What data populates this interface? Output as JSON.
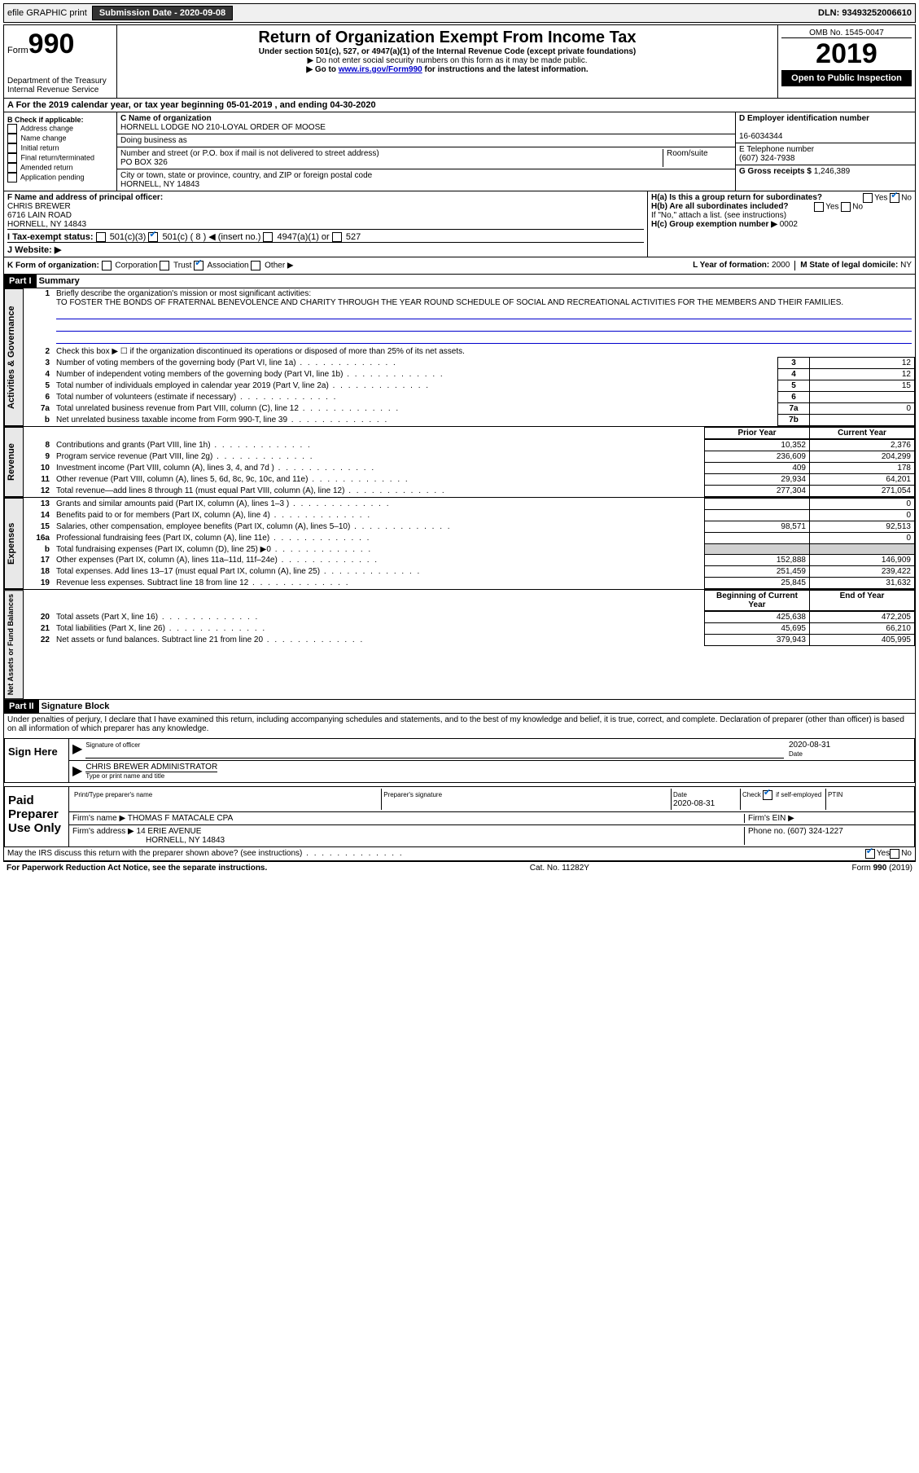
{
  "topbar": {
    "efile": "efile GRAPHIC print",
    "sub_label": "Submission Date - 2020-09-08",
    "dln": "DLN: 93493252006610"
  },
  "header": {
    "form_word": "Form",
    "form_no": "990",
    "dept": "Department of the Treasury\nInternal Revenue Service",
    "title": "Return of Organization Exempt From Income Tax",
    "subtitle": "Under section 501(c), 527, or 4947(a)(1) of the Internal Revenue Code (except private foundations)",
    "note1": "▶ Do not enter social security numbers on this form as it may be made public.",
    "note2_pre": "▶ Go to ",
    "note2_link": "www.irs.gov/Form990",
    "note2_post": " for instructions and the latest information.",
    "omb": "OMB No. 1545-0047",
    "year": "2019",
    "open": "Open to Public Inspection"
  },
  "line_a": "A For the 2019 calendar year, or tax year beginning 05-01-2019  , and ending 04-30-2020",
  "section_b": {
    "label": "B Check if applicable:",
    "items": [
      "Address change",
      "Name change",
      "Initial return",
      "Final return/terminated",
      "Amended return",
      "Application pending"
    ]
  },
  "section_c": {
    "label": "C Name of organization",
    "name": "HORNELL LODGE NO 210-LOYAL ORDER OF MOOSE",
    "dba_label": "Doing business as",
    "addr_label": "Number and street (or P.O. box if mail is not delivered to street address)",
    "room_label": "Room/suite",
    "addr": "PO BOX 326",
    "city_label": "City or town, state or province, country, and ZIP or foreign postal code",
    "city": "HORNELL, NY  14843"
  },
  "section_d": {
    "label": "D Employer identification number",
    "ein": "16-6034344",
    "tel_label": "E Telephone number",
    "tel": "(607) 324-7938",
    "gross_label": "G Gross receipts $",
    "gross": "1,246,389"
  },
  "section_f": {
    "label": "F  Name and address of principal officer:",
    "name": "CHRIS BREWER",
    "addr1": "6716 LAIN ROAD",
    "addr2": "HORNELL, NY  14843"
  },
  "section_h": {
    "ha": "H(a)  Is this a group return for subordinates?",
    "hb": "H(b)  Are all subordinates included?",
    "hb_note": "If \"No,\" attach a list. (see instructions)",
    "hc": "H(c)  Group exemption number ▶",
    "hc_val": "0002",
    "yes": "Yes",
    "no": "No"
  },
  "section_i": {
    "label": "I  Tax-exempt status:",
    "o1": "501(c)(3)",
    "o2": "501(c) ( 8 ) ◀ (insert no.)",
    "o3": "4947(a)(1) or",
    "o4": "527"
  },
  "section_j": {
    "label": "J  Website: ▶"
  },
  "section_k": {
    "label": "K Form of organization:",
    "o1": "Corporation",
    "o2": "Trust",
    "o3": "Association",
    "o4": "Other ▶"
  },
  "section_l": {
    "label": "L Year of formation:",
    "val": "2000"
  },
  "section_m": {
    "label": "M State of legal domicile:",
    "val": "NY"
  },
  "part1": {
    "header": "Part I",
    "title": "Summary",
    "l1": "Briefly describe the organization's mission or most significant activities:",
    "l1_text": "TO FOSTER THE BONDS OF FRATERNAL BENEVOLENCE AND CHARITY THROUGH THE YEAR ROUND SCHEDULE OF SOCIAL AND RECREATIONAL ACTIVITIES FOR THE MEMBERS AND THEIR FAMILIES.",
    "l2": "Check this box ▶ ☐ if the organization discontinued its operations or disposed of more than 25% of its net assets.",
    "sides": [
      "Activities & Governance",
      "Revenue",
      "Expenses",
      "Net Assets or Fund Balances"
    ],
    "lines_ag": [
      {
        "n": "3",
        "t": "Number of voting members of the governing body (Part VI, line 1a)",
        "box": "3",
        "v": "12"
      },
      {
        "n": "4",
        "t": "Number of independent voting members of the governing body (Part VI, line 1b)",
        "box": "4",
        "v": "12"
      },
      {
        "n": "5",
        "t": "Total number of individuals employed in calendar year 2019 (Part V, line 2a)",
        "box": "5",
        "v": "15"
      },
      {
        "n": "6",
        "t": "Total number of volunteers (estimate if necessary)",
        "box": "6",
        "v": ""
      },
      {
        "n": "7a",
        "t": "Total unrelated business revenue from Part VIII, column (C), line 12",
        "box": "7a",
        "v": "0"
      },
      {
        "n": "b",
        "t": "Net unrelated business taxable income from Form 990-T, line 39",
        "box": "7b",
        "v": ""
      }
    ],
    "col_prior": "Prior Year",
    "col_curr": "Current Year",
    "lines_rev": [
      {
        "n": "8",
        "t": "Contributions and grants (Part VIII, line 1h)",
        "p": "10,352",
        "c": "2,376"
      },
      {
        "n": "9",
        "t": "Program service revenue (Part VIII, line 2g)",
        "p": "236,609",
        "c": "204,299"
      },
      {
        "n": "10",
        "t": "Investment income (Part VIII, column (A), lines 3, 4, and 7d )",
        "p": "409",
        "c": "178"
      },
      {
        "n": "11",
        "t": "Other revenue (Part VIII, column (A), lines 5, 6d, 8c, 9c, 10c, and 11e)",
        "p": "29,934",
        "c": "64,201"
      },
      {
        "n": "12",
        "t": "Total revenue—add lines 8 through 11 (must equal Part VIII, column (A), line 12)",
        "p": "277,304",
        "c": "271,054"
      }
    ],
    "lines_exp": [
      {
        "n": "13",
        "t": "Grants and similar amounts paid (Part IX, column (A), lines 1–3 )",
        "p": "",
        "c": "0"
      },
      {
        "n": "14",
        "t": "Benefits paid to or for members (Part IX, column (A), line 4)",
        "p": "",
        "c": "0"
      },
      {
        "n": "15",
        "t": "Salaries, other compensation, employee benefits (Part IX, column (A), lines 5–10)",
        "p": "98,571",
        "c": "92,513"
      },
      {
        "n": "16a",
        "t": "Professional fundraising fees (Part IX, column (A), line 11e)",
        "p": "",
        "c": "0"
      },
      {
        "n": "b",
        "t": "Total fundraising expenses (Part IX, column (D), line 25) ▶0",
        "p": "gray",
        "c": "gray"
      },
      {
        "n": "17",
        "t": "Other expenses (Part IX, column (A), lines 11a–11d, 11f–24e)",
        "p": "152,888",
        "c": "146,909"
      },
      {
        "n": "18",
        "t": "Total expenses. Add lines 13–17 (must equal Part IX, column (A), line 25)",
        "p": "251,459",
        "c": "239,422"
      },
      {
        "n": "19",
        "t": "Revenue less expenses. Subtract line 18 from line 12",
        "p": "25,845",
        "c": "31,632"
      }
    ],
    "col_boy": "Beginning of Current Year",
    "col_eoy": "End of Year",
    "lines_na": [
      {
        "n": "20",
        "t": "Total assets (Part X, line 16)",
        "p": "425,638",
        "c": "472,205"
      },
      {
        "n": "21",
        "t": "Total liabilities (Part X, line 26)",
        "p": "45,695",
        "c": "66,210"
      },
      {
        "n": "22",
        "t": "Net assets or fund balances. Subtract line 21 from line 20",
        "p": "379,943",
        "c": "405,995"
      }
    ]
  },
  "part2": {
    "header": "Part II",
    "title": "Signature Block",
    "penalties": "Under penalties of perjury, I declare that I have examined this return, including accompanying schedules and statements, and to the best of my knowledge and belief, it is true, correct, and complete. Declaration of preparer (other than officer) is based on all information of which preparer has any knowledge."
  },
  "sign": {
    "here": "Sign Here",
    "sig_label": "Signature of officer",
    "date_label": "Date",
    "date": "2020-08-31",
    "name": "CHRIS BREWER  ADMINISTRATOR",
    "name_label": "Type or print name and title"
  },
  "prep": {
    "label": "Paid Preparer Use Only",
    "c1": "Print/Type preparer's name",
    "c2": "Preparer's signature",
    "c3": "Date",
    "c3v": "2020-08-31",
    "c4": "Check ☑ if self-employed",
    "c5": "PTIN",
    "firm_name_l": "Firm's name    ▶",
    "firm_name": "THOMAS F MATACALE CPA",
    "firm_ein_l": "Firm's EIN ▶",
    "firm_addr_l": "Firm's address ▶",
    "firm_addr1": "14 ERIE AVENUE",
    "firm_addr2": "HORNELL, NY  14843",
    "phone_l": "Phone no.",
    "phone": "(607) 324-1227"
  },
  "discuss": {
    "q": "May the IRS discuss this return with the preparer shown above? (see instructions)",
    "yes": "Yes",
    "no": "No"
  },
  "footer": {
    "l": "For Paperwork Reduction Act Notice, see the separate instructions.",
    "m": "Cat. No. 11282Y",
    "r": "Form 990 (2019)"
  }
}
